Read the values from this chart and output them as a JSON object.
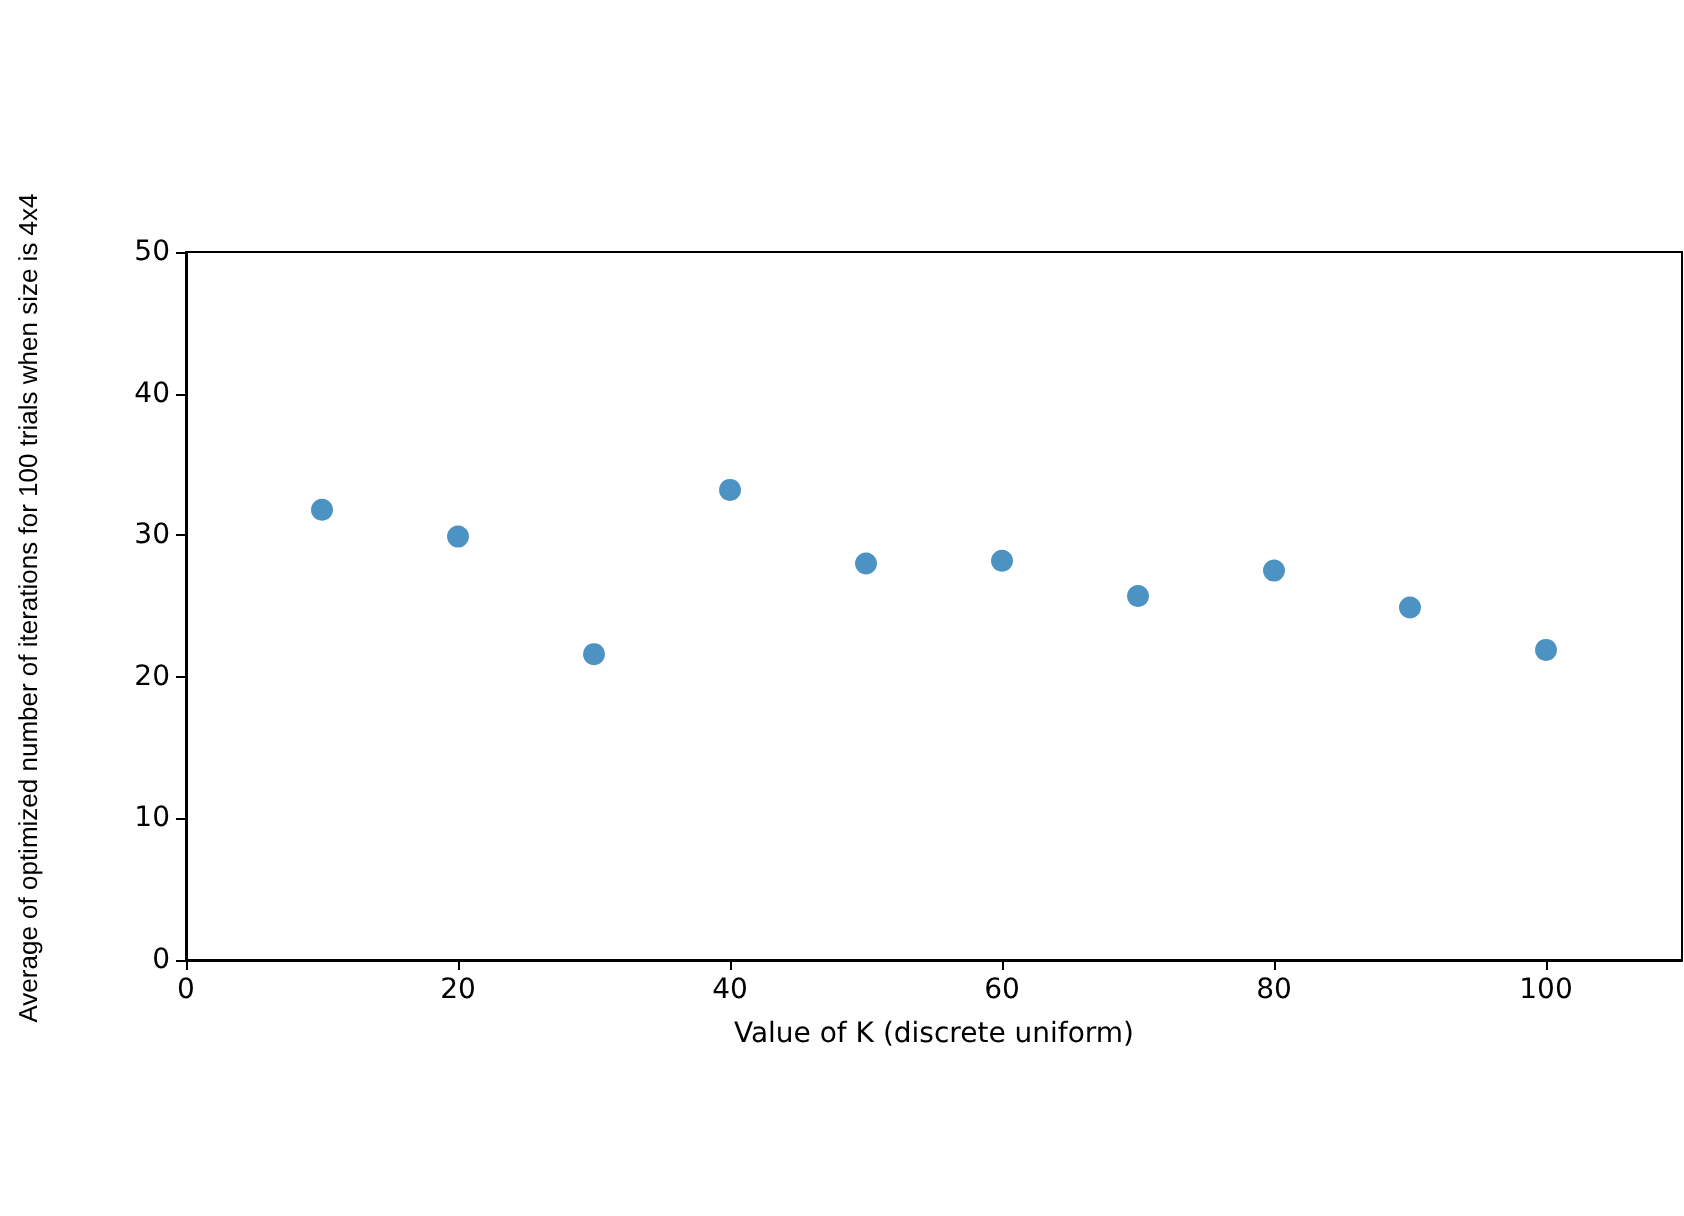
{
  "chart_data": {
    "type": "scatter",
    "xlabel": "Value of K (discrete uniform)",
    "ylabel": "Average of optimized number of iterations for 100 trials when size is 4x4",
    "x": [
      10,
      20,
      30,
      40,
      50,
      60,
      70,
      80,
      90,
      100
    ],
    "series": [
      {
        "color": "#1f77b4",
        "values": [
          31.8,
          29.9,
          21.6,
          33.2,
          28.0,
          28.2,
          25.7,
          27.5,
          24.9,
          21.9
        ]
      }
    ],
    "xlim": [
      0,
      110
    ],
    "xticks": [
      0,
      20,
      40,
      60,
      80,
      100
    ],
    "ylim": [
      0,
      50
    ],
    "yticks": [
      0,
      10,
      20,
      30,
      40,
      50
    ],
    "grid": false,
    "marker": "circle"
  }
}
